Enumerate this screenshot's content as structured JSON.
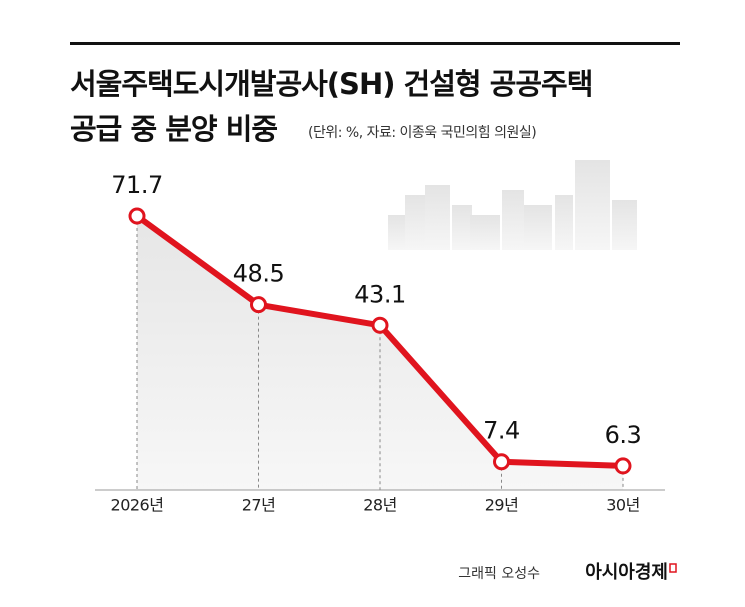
{
  "chart_data": {
    "type": "line",
    "title": "서울주택도시개발공사(SH) 건설형 공공주택",
    "title_line2": "공급 중 분양 비중",
    "subtitle": "(단위: %, 자료: 이종욱 국민의힘 의원실)",
    "categories": [
      "2026년",
      "27년",
      "28년",
      "29년",
      "30년"
    ],
    "values": [
      71.7,
      48.5,
      43.1,
      7.4,
      6.3
    ],
    "color": "#e0141e",
    "credit": "그래픽 오성수",
    "brand": "아시아경제"
  }
}
